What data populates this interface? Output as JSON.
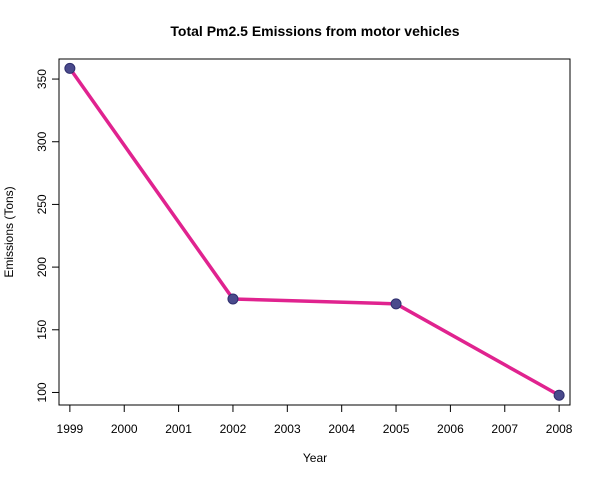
{
  "chart_data": {
    "type": "line",
    "title": "Total Pm2.5 Emissions from motor vehicles",
    "xlabel": "Year",
    "ylabel": "Emissions (Tons)",
    "x": [
      1999,
      2002,
      2005,
      2008
    ],
    "series": [
      {
        "values": [
          358.5,
          174.6,
          170.7,
          97.8
        ],
        "line_color": "#e0238f",
        "marker_color": "#4a4a8c"
      }
    ],
    "x_ticks": [
      1999,
      2000,
      2001,
      2002,
      2003,
      2004,
      2005,
      2006,
      2007,
      2008
    ],
    "y_ticks": [
      100,
      150,
      200,
      250,
      300,
      350
    ],
    "xlim": [
      1998.8,
      2008.2
    ],
    "ylim": [
      90,
      366
    ],
    "grid": false,
    "legend": "none"
  }
}
